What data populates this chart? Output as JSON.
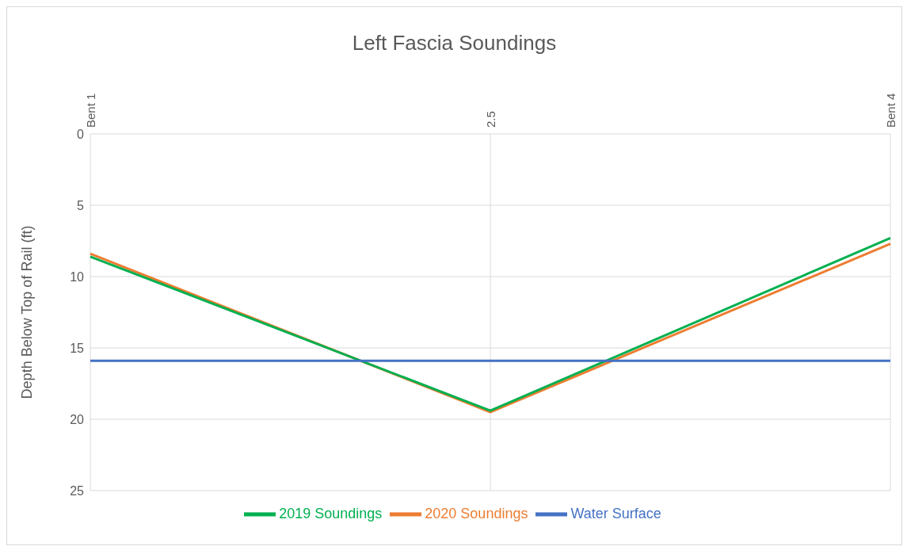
{
  "chart_data": {
    "type": "line",
    "title": "Left Fascia Soundings",
    "ylabel": "Depth Below Top of Rail (ft)",
    "categories": [
      "Bent 1",
      "2.5",
      "Bent 4"
    ],
    "series": [
      {
        "name": "2020 Soundings",
        "color": "#ed7d31",
        "values": [
          8.4,
          19.5,
          7.7
        ]
      },
      {
        "name": "2019 Soundings",
        "color": "#00b050",
        "values": [
          8.6,
          19.4,
          7.3
        ]
      },
      {
        "name": "Water Surface",
        "color": "#4472c4",
        "values": [
          15.9,
          15.9,
          15.9
        ]
      }
    ],
    "ylim": [
      25,
      0
    ],
    "yticks": [
      0,
      5,
      10,
      15,
      20,
      25
    ],
    "grid": true,
    "legend": "bottom",
    "marker": "none",
    "line_style": "solid"
  }
}
